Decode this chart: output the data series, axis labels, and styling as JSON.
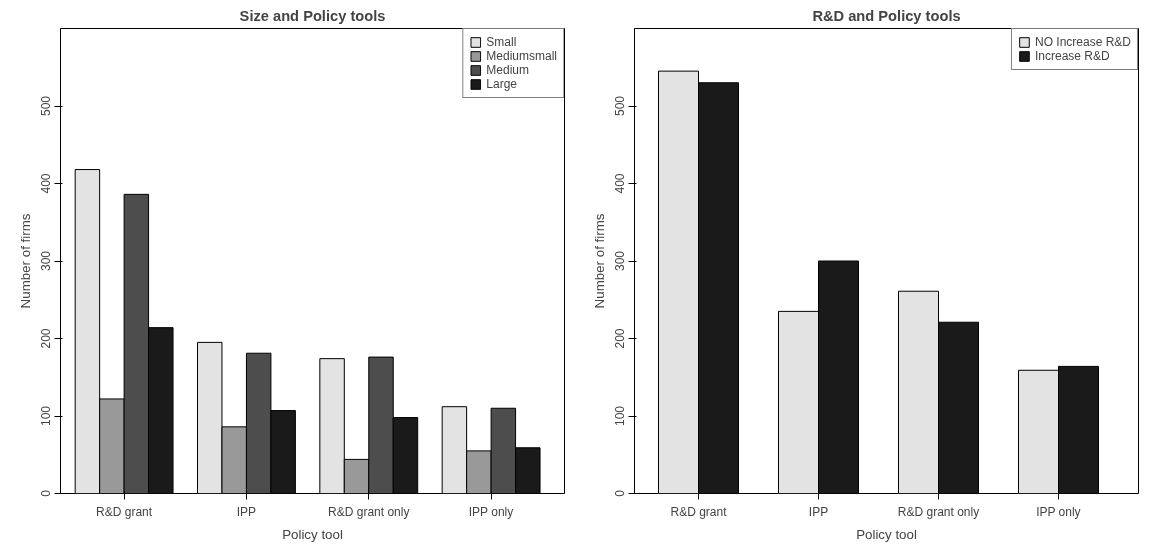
{
  "chart_data": [
    {
      "type": "bar",
      "title": "Size and Policy tools",
      "xlabel": "Policy tool",
      "ylabel": "Number of firms",
      "categories": [
        "R&D grant",
        "IPP",
        "R&D grant only",
        "IPP only"
      ],
      "series": [
        {
          "name": "Small",
          "color": "#e3e3e3",
          "values": [
            418,
            195,
            174,
            112
          ]
        },
        {
          "name": "Mediumsmall",
          "color": "#999999",
          "values": [
            122,
            86,
            44,
            55
          ]
        },
        {
          "name": "Medium",
          "color": "#4d4d4d",
          "values": [
            386,
            181,
            176,
            110
          ]
        },
        {
          "name": "Large",
          "color": "#1a1a1a",
          "values": [
            214,
            107,
            98,
            59
          ]
        }
      ],
      "ylim": [
        0,
        600
      ],
      "yticks": [
        0,
        100,
        200,
        300,
        400,
        500
      ],
      "grid": false,
      "legend": "top right"
    },
    {
      "type": "bar",
      "title": "R&D and Policy tools",
      "xlabel": "Policy tool",
      "ylabel": "Number of firms",
      "categories": [
        "R&D grant",
        "IPP",
        "R&D grant only",
        "IPP only"
      ],
      "series": [
        {
          "name": "NO Increase R&D",
          "color": "#e3e3e3",
          "values": [
            545,
            235,
            261,
            159
          ]
        },
        {
          "name": "Increase R&D",
          "color": "#1a1a1a",
          "values": [
            530,
            300,
            221,
            164
          ]
        }
      ],
      "ylim": [
        0,
        600
      ],
      "yticks": [
        0,
        100,
        200,
        300,
        400,
        500
      ],
      "grid": false,
      "legend": "top right"
    }
  ]
}
